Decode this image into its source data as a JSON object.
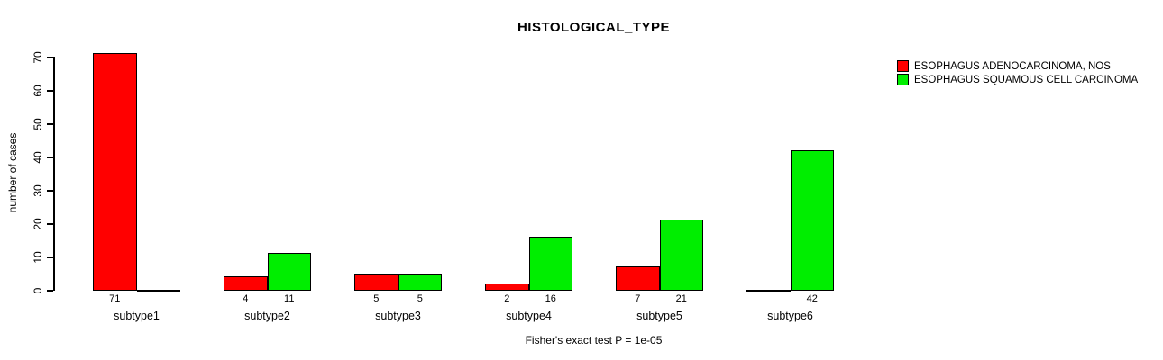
{
  "title": "HISTOLOGICAL_TYPE",
  "footnote": "Fisher's exact test P = 1e-05",
  "colors": {
    "series1": "#FF0000",
    "series2": "#00EE00",
    "axis": "#000000",
    "background": "#FFFFFF"
  },
  "chart_data": {
    "type": "bar",
    "title": "HISTOLOGICAL_TYPE",
    "xlabel": "",
    "ylabel": "number of cases",
    "ylim": [
      0,
      70
    ],
    "yticks": [
      0,
      10,
      20,
      30,
      40,
      50,
      60,
      70
    ],
    "grid": false,
    "legend_position": "top-right",
    "categories": [
      "subtype1",
      "subtype2",
      "subtype3",
      "subtype4",
      "subtype5",
      "subtype6"
    ],
    "series": [
      {
        "name": "ESOPHAGUS ADENOCARCINOMA, NOS",
        "color": "#FF0000",
        "values": [
          71,
          4,
          5,
          2,
          7,
          0
        ]
      },
      {
        "name": "ESOPHAGUS SQUAMOUS CELL CARCINOMA",
        "color": "#00EE00",
        "values": [
          0,
          11,
          5,
          16,
          21,
          42
        ]
      }
    ],
    "bar_value_labels_shown_for_nonzero_only": true,
    "annotation": "Fisher's exact test P = 1e-05"
  }
}
